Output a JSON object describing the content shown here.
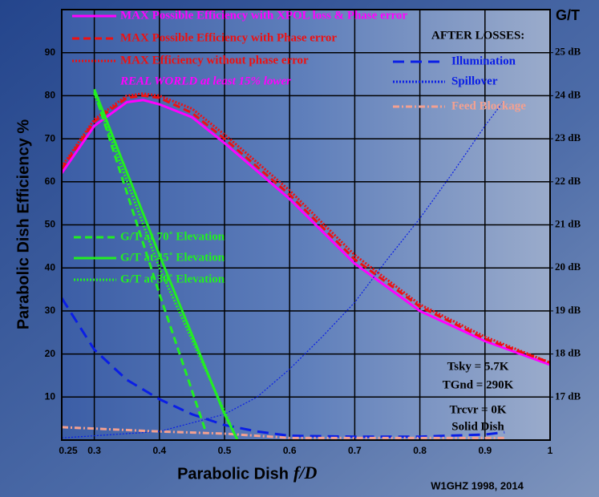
{
  "chart_data": {
    "type": "line",
    "y_label": "Parabolic Dish Efficiency %",
    "x_label": "Parabolic Dish",
    "x_label_italic": "f/D",
    "y2_label": "G/T",
    "credit": "W1GHZ 1998, 2014",
    "xlim": [
      0.25,
      1.0
    ],
    "xticks": [
      0.25,
      0.3,
      0.4,
      0.5,
      0.6,
      0.7,
      0.8,
      0.9,
      1.0
    ],
    "ylim": [
      0,
      100
    ],
    "yticks": [
      10,
      20,
      30,
      40,
      50,
      60,
      70,
      80,
      90
    ],
    "y2lim": [
      16,
      26
    ],
    "y2ticks": [
      {
        "value": 17,
        "label": "17 dB"
      },
      {
        "value": 18,
        "label": "18 dB"
      },
      {
        "value": 19,
        "label": "19 dB"
      },
      {
        "value": 20,
        "label": "20 dB"
      },
      {
        "value": 21,
        "label": "21 dB"
      },
      {
        "value": 22,
        "label": "22 dB"
      },
      {
        "value": 23,
        "label": "23 dB"
      },
      {
        "value": 24,
        "label": "24 dB"
      },
      {
        "value": 25,
        "label": "25 dB"
      }
    ],
    "grid": true,
    "series": [
      {
        "name": "MAX Possible Efficiency with XPOL loss & Phase error",
        "color": "#ff00ff",
        "dash": "solid",
        "x": [
          0.25,
          0.3,
          0.35,
          0.375,
          0.4,
          0.45,
          0.5,
          0.6,
          0.7,
          0.8,
          0.9,
          1.0
        ],
        "values": [
          62,
          73,
          78.5,
          79,
          78,
          75,
          69,
          56,
          41,
          30,
          23,
          17.5
        ]
      },
      {
        "name": "MAX Possible Efficiency with Phase error",
        "color": "#ee1111",
        "dash": "dashed",
        "x": [
          0.25,
          0.3,
          0.35,
          0.375,
          0.4,
          0.45,
          0.5,
          0.6,
          0.7,
          0.8,
          0.9,
          1.0
        ],
        "values": [
          63,
          74,
          79.5,
          80,
          79.5,
          76,
          70,
          57,
          42,
          31,
          23.5,
          18
        ]
      },
      {
        "name": "MAX Efficiency without phase error",
        "color": "#ee1111",
        "dash": "dotted",
        "x": [
          0.25,
          0.3,
          0.35,
          0.375,
          0.4,
          0.45,
          0.5,
          0.6,
          0.7,
          0.8,
          0.9,
          1.0
        ],
        "values": [
          63.5,
          74.5,
          80,
          80.5,
          80,
          77,
          71,
          58,
          43,
          31.5,
          24,
          18
        ]
      },
      {
        "name": "Illumination",
        "color": "#0a1ee6",
        "dash": "longdash",
        "x": [
          0.25,
          0.3,
          0.35,
          0.4,
          0.45,
          0.5,
          0.55,
          0.6,
          0.7,
          0.8,
          0.9,
          0.93
        ],
        "values": [
          33,
          21,
          14,
          9.5,
          6,
          3.5,
          2,
          1,
          0.8,
          0.8,
          1.3,
          1.8
        ]
      },
      {
        "name": "Spillover",
        "color": "#0a1ee6",
        "dash": "dotted",
        "x": [
          0.25,
          0.4,
          0.5,
          0.55,
          0.6,
          0.65,
          0.7,
          0.75,
          0.8,
          0.85,
          0.9,
          0.93
        ],
        "values": [
          0.5,
          2,
          6,
          10,
          16.5,
          24,
          32,
          42,
          51.5,
          62,
          73,
          79
        ]
      },
      {
        "name": "Feed Blockage",
        "color": "#f4a090",
        "dash": "dashdot",
        "x": [
          0.25,
          0.4,
          0.5,
          0.6,
          0.7,
          0.8,
          0.93
        ],
        "values": [
          3,
          2,
          1.5,
          0.5,
          0.5,
          0.5,
          0.5
        ]
      },
      {
        "name": "G/T at 70˚ Elevation",
        "color": "#22ee22",
        "dash": "dashed",
        "axis": "y2",
        "x": [
          0.3,
          0.4,
          0.47
        ],
        "values": [
          24.1,
          19.4,
          16.25
        ]
      },
      {
        "name": "G/T at 45˚ Elevation",
        "color": "#22ee22",
        "dash": "solid",
        "axis": "y2",
        "x": [
          0.3,
          0.4,
          0.5,
          0.52
        ],
        "values": [
          24.15,
          20.3,
          16.6,
          16.0
        ]
      },
      {
        "name": "G/T at 30˚ Elevation",
        "color": "#22ee22",
        "dash": "dotted",
        "axis": "y2",
        "x": [
          0.3,
          0.4,
          0.52
        ],
        "values": [
          24.05,
          20.0,
          16.0
        ]
      }
    ],
    "annotations": [
      "REAL WORLD at least 15% lower",
      "AFTER LOSSES:",
      "Tsky = 5.7K",
      "TGnd = 290K",
      "Trcvr = 0K",
      "Solid Dish"
    ]
  }
}
